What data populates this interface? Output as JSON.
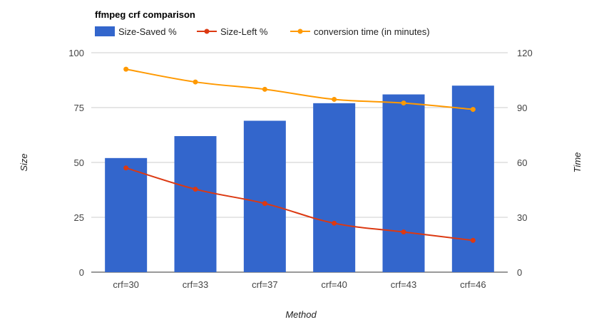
{
  "chart_data": {
    "type": "bar",
    "title": "ffmpeg crf comparison",
    "categories": [
      "crf=30",
      "crf=33",
      "crf=37",
      "crf=40",
      "crf=43",
      "crf=46"
    ],
    "series": [
      {
        "name": "Size-Saved %",
        "kind": "bar",
        "axis": "left",
        "color": "#3366cc",
        "values": [
          52,
          62,
          69,
          77,
          81,
          85
        ]
      },
      {
        "name": "Size-Left %",
        "kind": "line",
        "axis": "left",
        "color": "#dc3912",
        "values": [
          47.5,
          37.8,
          31.3,
          22.3,
          18.3,
          14.5
        ]
      },
      {
        "name": "conversion time (in minutes)",
        "kind": "line",
        "axis": "right",
        "color": "#ff9900",
        "values": [
          111,
          104,
          100,
          94.5,
          92.5,
          89
        ]
      }
    ],
    "xlabel": "Method",
    "ylabel": "Size",
    "y2label": "Time",
    "ylim": [
      0,
      100
    ],
    "y2lim": [
      0,
      120
    ],
    "yticks": [
      0,
      25,
      50,
      75,
      100
    ],
    "y2ticks": [
      0,
      30,
      60,
      90,
      120
    ],
    "grid": true,
    "legend_position": "top-left"
  }
}
